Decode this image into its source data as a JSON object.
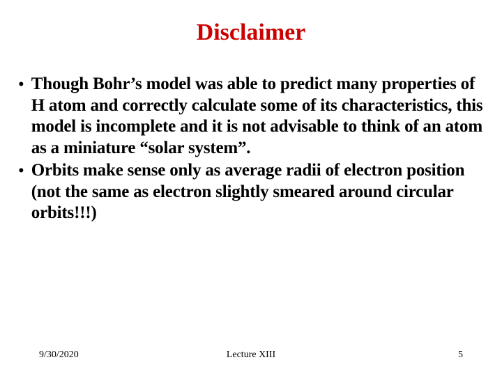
{
  "title": "Disclaimer",
  "title_color": "#cc0000",
  "bullets": [
    "Though Bohr’s model was able to predict many properties of H atom and correctly calculate some of its characteristics, this model is incomplete and it is not advisable to think of an atom as a miniature “solar system”.",
    "Orbits make sense only as average radii of electron position (not the same as electron slightly smeared around circular orbits!!!)"
  ],
  "footer": {
    "date": "9/30/2020",
    "center": "Lecture XIII",
    "page": "5"
  },
  "typography": {
    "title_fontsize": 34,
    "body_fontsize": 25,
    "footer_fontsize": 14,
    "font_family": "Times New Roman",
    "body_bold": true
  },
  "background_color": "#ffffff",
  "text_color": "#000000"
}
